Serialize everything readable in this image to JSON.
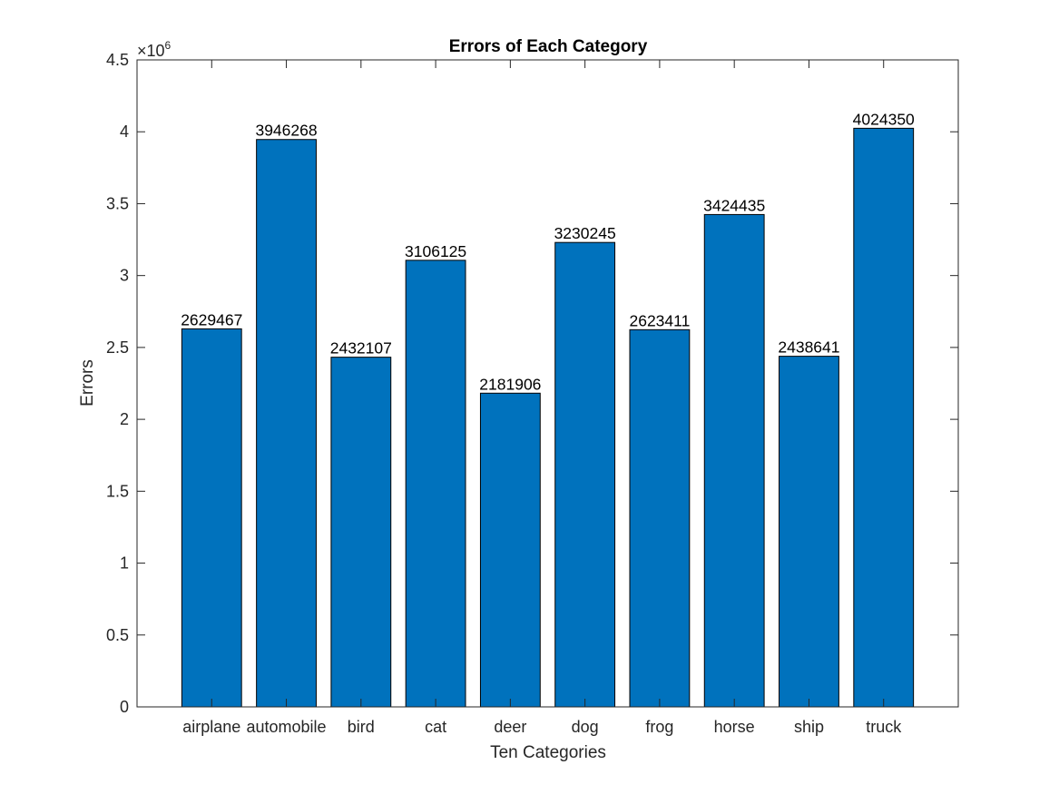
{
  "chart_data": {
    "type": "bar",
    "title": "Errors of Each Category",
    "xlabel": "Ten Categories",
    "ylabel": "Errors",
    "categories": [
      "airplane",
      "automobile",
      "bird",
      "cat",
      "deer",
      "dog",
      "frog",
      "horse",
      "ship",
      "truck"
    ],
    "values": [
      2629467,
      3946268,
      2432107,
      3106125,
      2181906,
      3230245,
      2623411,
      3424435,
      2438641,
      4024350
    ],
    "data_labels": [
      "2629467",
      "3946268",
      "2432107",
      "3106125",
      "2181906",
      "3230245",
      "2623411",
      "3424435",
      "2438641",
      "4024350"
    ],
    "ylim": [
      0,
      4500000
    ],
    "y_ticks": [
      0,
      0.5,
      1,
      1.5,
      2,
      2.5,
      3,
      3.5,
      4,
      4.5
    ],
    "y_tick_labels": [
      "0",
      "0.5",
      "1",
      "1.5",
      "2",
      "2.5",
      "3",
      "3.5",
      "4",
      "4.5"
    ],
    "y_multiplier": 1000000,
    "y_exponent_base": "×10",
    "y_exponent_power": "6",
    "bar_color": "#0072BD",
    "grid": false,
    "box": true
  }
}
